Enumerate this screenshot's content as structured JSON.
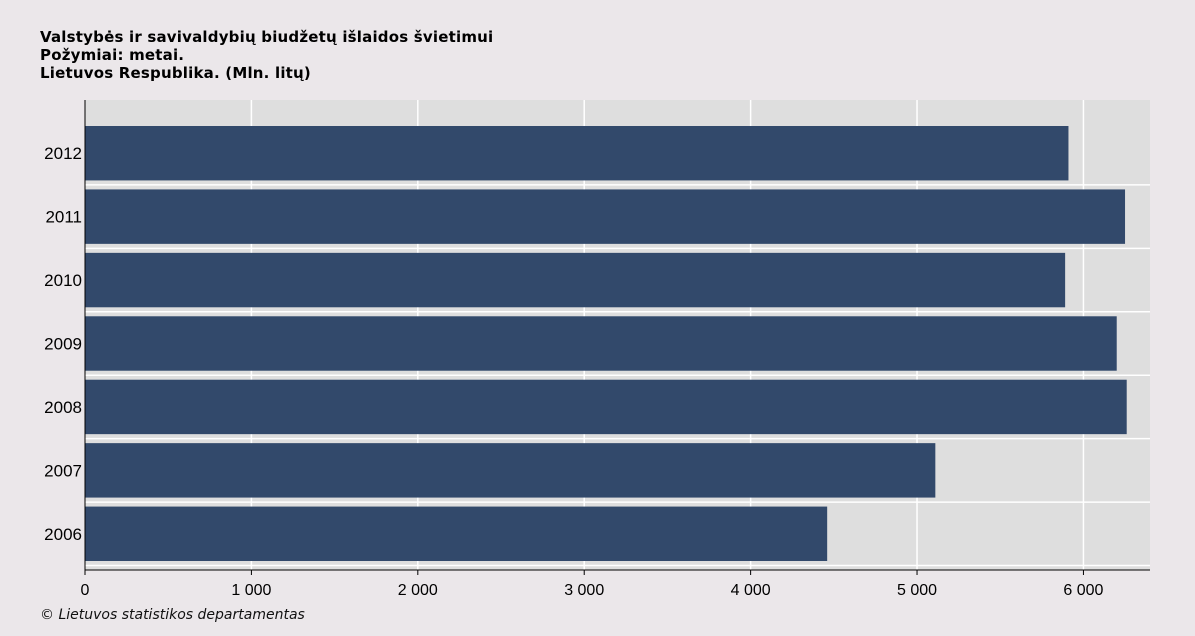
{
  "header": {
    "title": "Valstybės ir savivaldybių biudžetų išlaidos švietimui",
    "subtitle": "Požymiai: metai.",
    "unit_line": "Lietuvos Respublika. (Mln. litų)"
  },
  "footer": {
    "credit": "© Lietuvos statistikos departamentas"
  },
  "chart_data": {
    "type": "bar",
    "orientation": "horizontal",
    "title": "Valstybės ir savivaldybių biudžetų išlaidos švietimui",
    "xlabel": "",
    "ylabel": "",
    "categories": [
      "2012",
      "2011",
      "2010",
      "2009",
      "2008",
      "2007",
      "2006"
    ],
    "values": [
      5910,
      6250,
      5890,
      6200,
      6260,
      5110,
      4460
    ],
    "xlim": [
      0,
      6400
    ],
    "x_ticks": [
      0,
      1000,
      2000,
      3000,
      4000,
      5000,
      6000
    ],
    "x_tick_labels": [
      "0",
      "1 000",
      "2 000",
      "3 000",
      "4 000",
      "5 000",
      "6 000"
    ],
    "grid": true,
    "colors": {
      "bar": "#32496b",
      "plot_bg": "#dedede",
      "grid": "#ffffff",
      "page_bg": "#ebe7ea"
    }
  }
}
